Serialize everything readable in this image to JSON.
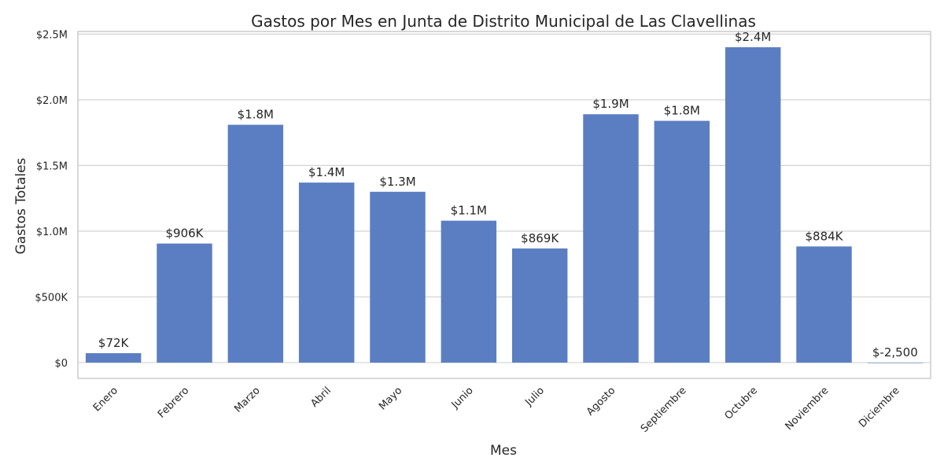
{
  "chart_data": {
    "type": "bar",
    "title": "Gastos por Mes en Junta de Distrito Municipal de Las Clavellinas",
    "xlabel": "Mes",
    "ylabel": "Gastos Totales",
    "categories": [
      "Enero",
      "Febrero",
      "Marzo",
      "Abril",
      "Mayo",
      "Junio",
      "Julio",
      "Agosto",
      "Septiembre",
      "Octubre",
      "Noviembre",
      "Diciembre"
    ],
    "values": [
      72000,
      906000,
      1810000,
      1370000,
      1300000,
      1080000,
      869000,
      1890000,
      1840000,
      2400000,
      884000,
      -2500
    ],
    "data_labels": [
      "$72K",
      "$906K",
      "$1.8M",
      "$1.4M",
      "$1.3M",
      "$1.1M",
      "$869K",
      "$1.9M",
      "$1.8M",
      "$2.4M",
      "$884K",
      "$-2,500"
    ],
    "yticks": [
      0,
      500000,
      1000000,
      1500000,
      2000000,
      2500000
    ],
    "ytick_labels": [
      "$0",
      "$500K",
      "$1.0M",
      "$1.5M",
      "$2.0M",
      "$2.5M"
    ],
    "ylim": [
      -120000,
      2520000
    ],
    "grid": true,
    "colors": {
      "bar": "#5b7ec2",
      "grid": "#d3d3d3",
      "frame": "#cccccc",
      "text": "#262626"
    }
  }
}
